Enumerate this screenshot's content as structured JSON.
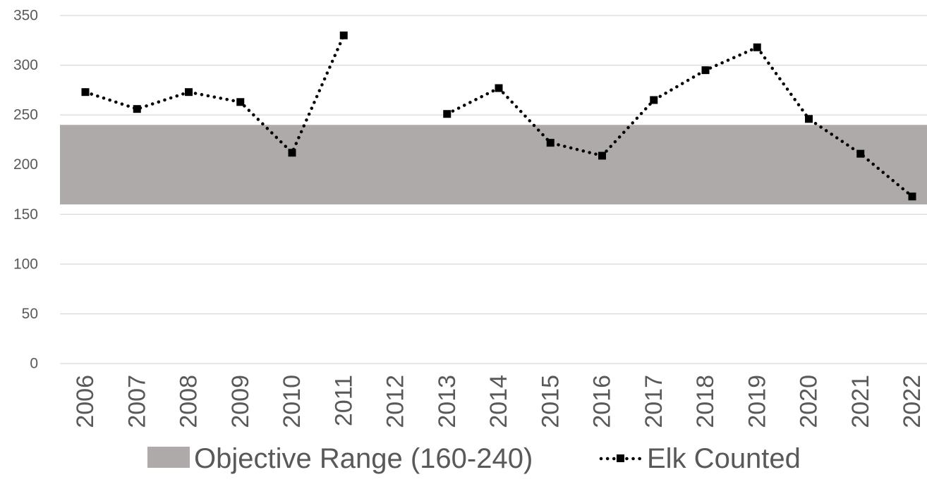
{
  "chart_data": {
    "type": "line",
    "title": "",
    "xlabel": "",
    "ylabel": "",
    "ylim": [
      0,
      350
    ],
    "yticks": [
      0,
      50,
      100,
      150,
      200,
      250,
      300,
      350
    ],
    "grid": true,
    "categories": [
      "2006",
      "2007",
      "2008",
      "2009",
      "2010",
      "2011",
      "2012",
      "2013",
      "2014",
      "2015",
      "2016",
      "2017",
      "2018",
      "2019",
      "2020",
      "2021",
      "2022"
    ],
    "band": {
      "name": "Objective Range (160-240)",
      "low": 160,
      "high": 240,
      "color": "#aeaaaa"
    },
    "series": [
      {
        "name": "Elk Counted",
        "values": [
          273,
          256,
          273,
          263,
          212,
          330,
          null,
          251,
          277,
          222,
          209,
          265,
          295,
          318,
          246,
          211,
          168
        ],
        "color": "#000000",
        "line_style": "dotted",
        "marker": "square"
      }
    ],
    "legend_position": "bottom"
  }
}
